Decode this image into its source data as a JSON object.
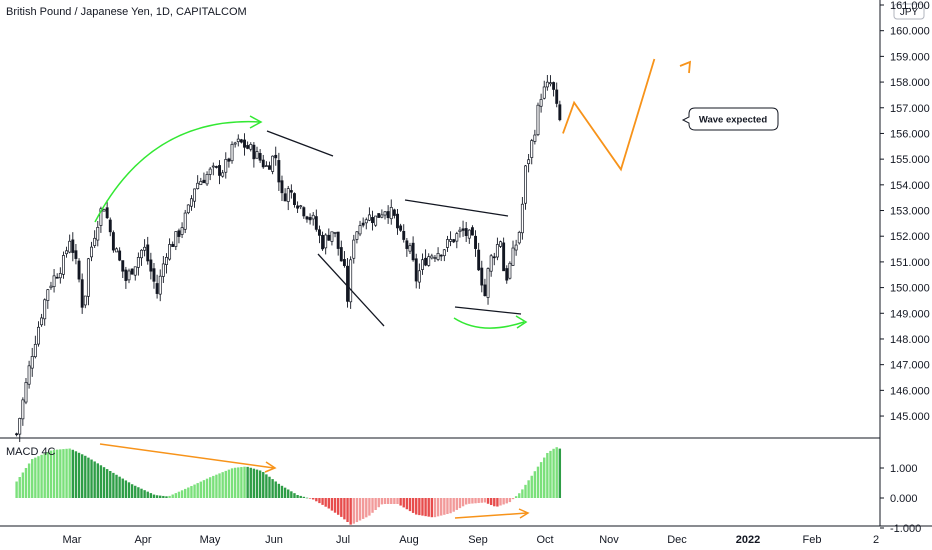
{
  "title": "British Pound / Japanese Yen, 1D, CAPITALCOM",
  "currency_badge": "JPY",
  "colors": {
    "up_bar": "#ffffff",
    "down_bar": "#131722",
    "green_arrow": "#33e833",
    "orange": "#f7931a",
    "macd_green_bright": "#7be07b",
    "macd_green_dark": "#2e9d46",
    "macd_red": "#e74c4c"
  },
  "chart_data": [
    {
      "type": "candlestick",
      "title": "British Pound / Japanese Yen, 1D, CAPITALCOM",
      "y_unit": "JPY",
      "ylim": [
        144.4,
        161.0
      ],
      "y_ticks": [
        "145.000",
        "146.000",
        "147.000",
        "148.000",
        "149.000",
        "150.000",
        "151.000",
        "152.000",
        "153.000",
        "154.000",
        "155.000",
        "156.000",
        "157.000",
        "158.000",
        "159.000",
        "160.000",
        "161.000"
      ],
      "x_ticks": [
        "Mar",
        "Apr",
        "May",
        "Jun",
        "Jul",
        "Aug",
        "Sep",
        "Oct",
        "Nov",
        "Dec",
        "2022",
        "Feb",
        "2"
      ],
      "close_path": [
        [
          "Feb-22",
          144.3
        ],
        [
          "Mar-01",
          147.5
        ],
        [
          "Mar-08",
          150.0
        ],
        [
          "Mar-15",
          151.0
        ],
        [
          "Mar-18",
          152.0
        ],
        [
          "Mar-22",
          150.3
        ],
        [
          "Mar-24",
          149.0
        ],
        [
          "Mar-26",
          151.0
        ],
        [
          "Mar-30",
          152.5
        ],
        [
          "Apr-02",
          153.3
        ],
        [
          "Apr-06",
          151.8
        ],
        [
          "Apr-12",
          150.3
        ],
        [
          "Apr-20",
          151.6
        ],
        [
          "Apr-26",
          149.8
        ],
        [
          "Apr-30",
          151.4
        ],
        [
          "May-05",
          152.0
        ],
        [
          "May-10",
          153.0
        ],
        [
          "May-13",
          154.0
        ],
        [
          "May-20",
          154.5
        ],
        [
          "May-26",
          154.6
        ],
        [
          "May-31",
          155.6
        ],
        [
          "Jun-03",
          155.6
        ],
        [
          "Jun-08",
          155.3
        ],
        [
          "Jun-14",
          154.7
        ],
        [
          "Jun-18",
          155.2
        ],
        [
          "Jun-21",
          153.5
        ],
        [
          "Jun-24",
          153.8
        ],
        [
          "Jun-30",
          153.1
        ],
        [
          "Jul-05",
          152.6
        ],
        [
          "Jul-09",
          151.7
        ],
        [
          "Jul-14",
          152.3
        ],
        [
          "Jul-19",
          150.6
        ],
        [
          "Jul-20",
          149.2
        ],
        [
          "Jul-23",
          152.0
        ],
        [
          "Jul-28",
          152.8
        ],
        [
          "Aug-02",
          152.7
        ],
        [
          "Aug-06",
          153.1
        ],
        [
          "Aug-10",
          152.8
        ],
        [
          "Aug-13",
          152.0
        ],
        [
          "Aug-18",
          151.3
        ],
        [
          "Aug-20",
          150.3
        ],
        [
          "Aug-24",
          151.1
        ],
        [
          "Aug-27",
          151.3
        ],
        [
          "Sep-01",
          151.5
        ],
        [
          "Sep-07",
          152.0
        ],
        [
          "Sep-10",
          152.2
        ],
        [
          "Sep-14",
          151.9
        ],
        [
          "Sep-17",
          151.0
        ],
        [
          "Sep-20",
          149.7
        ],
        [
          "Sep-22",
          151.0
        ],
        [
          "Sep-27",
          151.9
        ],
        [
          "Sep-29",
          150.2
        ],
        [
          "Oct-01",
          150.8
        ],
        [
          "Oct-04",
          151.7
        ],
        [
          "Oct-06",
          152.4
        ],
        [
          "Oct-08",
          154.5
        ],
        [
          "Oct-12",
          156.0
        ],
        [
          "Oct-15",
          157.5
        ],
        [
          "Oct-20",
          158.0
        ],
        [
          "Oct-22",
          157.0
        ],
        [
          "Oct-25",
          156.0
        ]
      ]
    },
    {
      "type": "bar",
      "title": "MACD 4C",
      "ylim": [
        -1.0,
        2.0
      ],
      "y_ticks": [
        "1.000",
        "0.000",
        "-1.000"
      ],
      "x_ticks": [
        "Mar",
        "Apr",
        "May",
        "Jun",
        "Jul",
        "Aug",
        "Sep",
        "Oct",
        "Nov",
        "Dec",
        "2022",
        "Feb",
        "2"
      ],
      "histogram_path": [
        [
          "Feb-22",
          0.55
        ],
        [
          "Mar-01",
          1.3
        ],
        [
          "Mar-10",
          1.6
        ],
        [
          "Mar-18",
          1.65
        ],
        [
          "Mar-25",
          1.4
        ],
        [
          "Apr-05",
          0.9
        ],
        [
          "Apr-15",
          0.45
        ],
        [
          "Apr-25",
          0.1
        ],
        [
          "May-01",
          0.05
        ],
        [
          "May-10",
          0.35
        ],
        [
          "May-20",
          0.7
        ],
        [
          "May-30",
          1.0
        ],
        [
          "Jun-05",
          1.05
        ],
        [
          "Jun-12",
          0.9
        ],
        [
          "Jun-20",
          0.45
        ],
        [
          "Jun-28",
          0.1
        ],
        [
          "Jul-05",
          -0.05
        ],
        [
          "Jul-12",
          -0.35
        ],
        [
          "Jul-18",
          -0.65
        ],
        [
          "Jul-22",
          -0.9
        ],
        [
          "Jul-30",
          -0.6
        ],
        [
          "Aug-05",
          -0.2
        ],
        [
          "Aug-12",
          -0.2
        ],
        [
          "Aug-20",
          -0.55
        ],
        [
          "Aug-28",
          -0.65
        ],
        [
          "Sep-05",
          -0.5
        ],
        [
          "Sep-12",
          -0.2
        ],
        [
          "Sep-20",
          -0.15
        ],
        [
          "Sep-25",
          -0.3
        ],
        [
          "Oct-01",
          -0.15
        ],
        [
          "Oct-06",
          0.2
        ],
        [
          "Oct-12",
          0.85
        ],
        [
          "Oct-18",
          1.5
        ],
        [
          "Oct-22",
          1.7
        ],
        [
          "Oct-25",
          1.6
        ]
      ]
    }
  ],
  "annotations": {
    "callout_text": "Wave expected",
    "orange_projection": [
      [
        "Oct-25",
        156.0
      ],
      [
        "Oct-30",
        157.2
      ],
      [
        "Nov-20",
        154.6
      ],
      [
        "Dec-05",
        158.9
      ]
    ]
  }
}
